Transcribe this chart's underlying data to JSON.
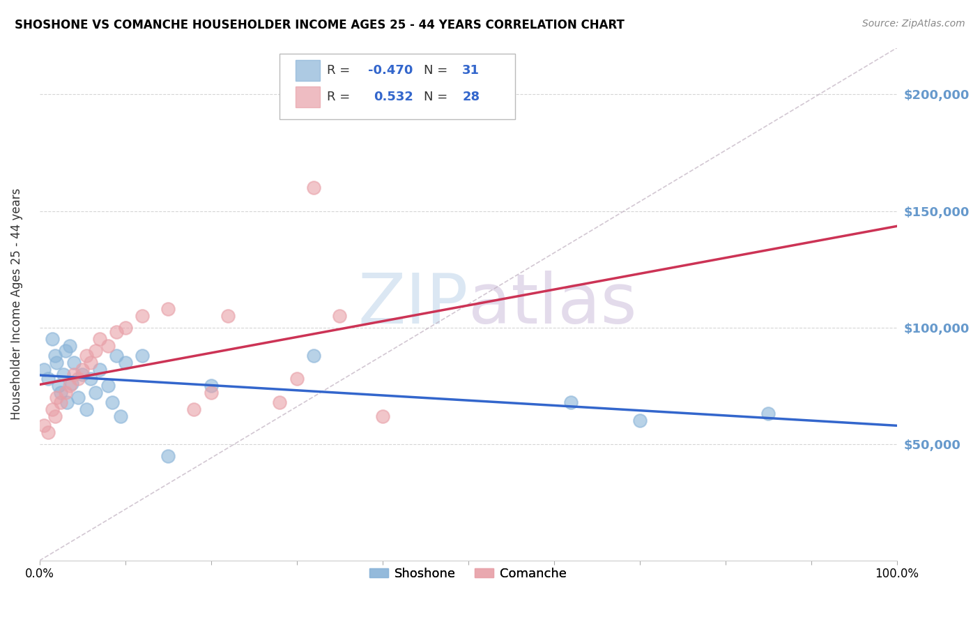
{
  "title": "SHOSHONE VS COMANCHE HOUSEHOLDER INCOME AGES 25 - 44 YEARS CORRELATION CHART",
  "source": "Source: ZipAtlas.com",
  "ylabel": "Householder Income Ages 25 - 44 years",
  "x_min": 0.0,
  "x_max": 1.0,
  "y_min": 0,
  "y_max": 220000,
  "y_ticks": [
    50000,
    100000,
    150000,
    200000
  ],
  "y_tick_labels": [
    "$50,000",
    "$100,000",
    "$150,000",
    "$200,000"
  ],
  "x_ticks": [
    0.0,
    0.1,
    0.2,
    0.3,
    0.4,
    0.5,
    0.6,
    0.7,
    0.8,
    0.9,
    1.0
  ],
  "x_tick_labels": [
    "0.0%",
    "",
    "",
    "",
    "",
    "",
    "",
    "",
    "",
    "",
    "100.0%"
  ],
  "shoshone_color": "#8ab4d8",
  "comanche_color": "#e8a0a8",
  "shoshone_line_color": "#3366cc",
  "comanche_line_color": "#cc3355",
  "diag_line_color": "#ccaabb",
  "shoshone_R": -0.47,
  "shoshone_N": 31,
  "comanche_R": 0.532,
  "comanche_N": 28,
  "watermark_zip_color": "#b8d0e8",
  "watermark_atlas_color": "#c8b8d8",
  "shoshone_x": [
    0.005,
    0.01,
    0.015,
    0.018,
    0.02,
    0.022,
    0.025,
    0.028,
    0.03,
    0.032,
    0.035,
    0.038,
    0.04,
    0.045,
    0.05,
    0.055,
    0.06,
    0.065,
    0.07,
    0.08,
    0.085,
    0.09,
    0.095,
    0.1,
    0.12,
    0.15,
    0.2,
    0.32,
    0.62,
    0.7,
    0.85
  ],
  "shoshone_y": [
    82000,
    78000,
    95000,
    88000,
    85000,
    75000,
    72000,
    80000,
    90000,
    68000,
    92000,
    76000,
    85000,
    70000,
    80000,
    65000,
    78000,
    72000,
    82000,
    75000,
    68000,
    88000,
    62000,
    85000,
    88000,
    45000,
    75000,
    88000,
    68000,
    60000,
    63000
  ],
  "comanche_x": [
    0.005,
    0.01,
    0.015,
    0.018,
    0.02,
    0.025,
    0.03,
    0.035,
    0.04,
    0.045,
    0.05,
    0.055,
    0.06,
    0.065,
    0.07,
    0.08,
    0.09,
    0.1,
    0.12,
    0.15,
    0.18,
    0.2,
    0.22,
    0.28,
    0.3,
    0.35,
    0.4,
    0.32
  ],
  "comanche_y": [
    58000,
    55000,
    65000,
    62000,
    70000,
    68000,
    72000,
    75000,
    80000,
    78000,
    82000,
    88000,
    85000,
    90000,
    95000,
    92000,
    98000,
    100000,
    105000,
    108000,
    65000,
    72000,
    105000,
    68000,
    78000,
    105000,
    62000,
    160000
  ]
}
